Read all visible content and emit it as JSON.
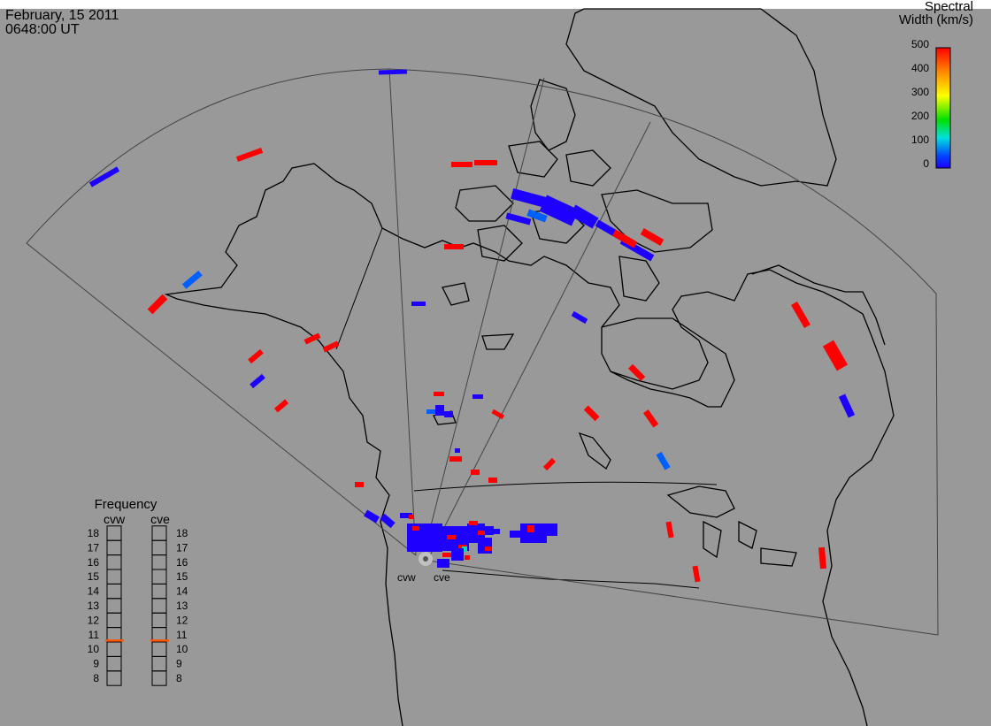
{
  "header": {
    "date": "February, 15 2011",
    "time": "0648:00 UT"
  },
  "colorbar": {
    "title_line1": "Spectral",
    "title_line2": "Width (km/s)",
    "ticks": [
      "500",
      "400",
      "300",
      "200",
      "100",
      "0"
    ],
    "colors": [
      "#ff0000",
      "#ff8800",
      "#ffff00",
      "#00e000",
      "#00e0e0",
      "#0044ff",
      "#1e00ff"
    ]
  },
  "frequency_panel": {
    "title": "Frequency",
    "radars": [
      {
        "name": "cvw",
        "current_mhz": 10.6
      },
      {
        "name": "cve",
        "current_mhz": 10.6
      }
    ],
    "ticks": [
      "18",
      "17",
      "16",
      "15",
      "14",
      "13",
      "12",
      "11",
      "10",
      "9",
      "8"
    ],
    "indicator_color": "#ff5500"
  },
  "radar_labels": {
    "west": "cvw",
    "east": "cve"
  },
  "echo_colors": {
    "high": "#ff0000",
    "low": "#1e00ff",
    "mid": "#0060ff"
  }
}
